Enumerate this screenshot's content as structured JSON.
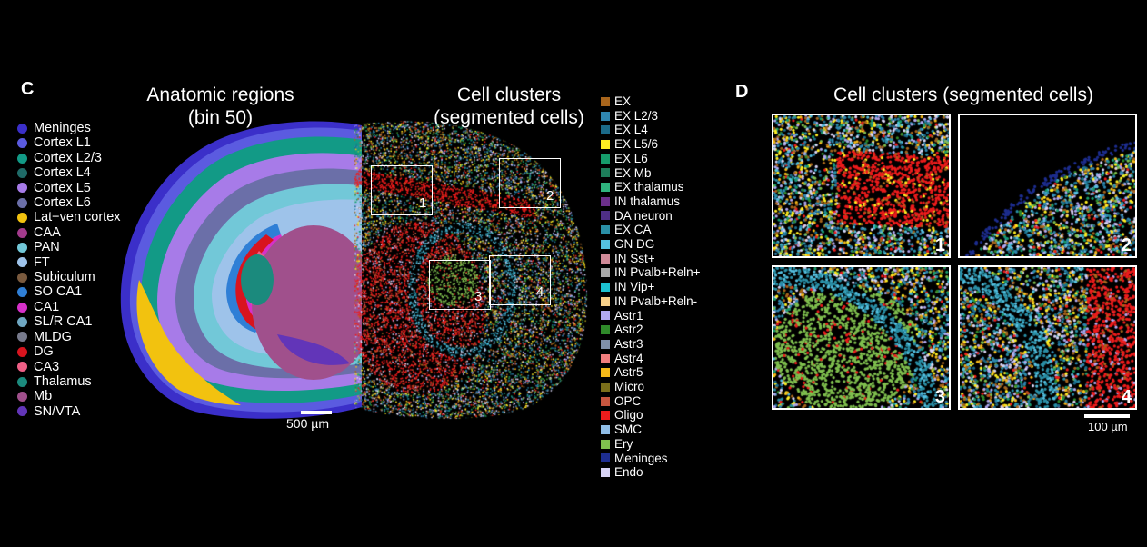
{
  "panel_c": {
    "letter": "C",
    "title_left_line1": "Anatomic regions",
    "title_left_line2": "(bin 50)",
    "title_right_line1": "Cell clusters",
    "title_right_line2": "(segmented cells)",
    "scalebar_label": "500 µm",
    "regions": [
      {
        "label": "Meninges",
        "color": "#3b2fc9"
      },
      {
        "label": "Cortex L1",
        "color": "#5b5be0"
      },
      {
        "label": "Cortex L2/3",
        "color": "#129a86"
      },
      {
        "label": "Cortex L4",
        "color": "#1f6b68"
      },
      {
        "label": "Cortex L5",
        "color": "#a77be8"
      },
      {
        "label": "Cortex L6",
        "color": "#6b6fa8"
      },
      {
        "label": "Lat−ven cortex",
        "color": "#f2c20f"
      },
      {
        "label": "CAA",
        "color": "#a33a8c"
      },
      {
        "label": "PAN",
        "color": "#72c8d8"
      },
      {
        "label": "FT",
        "color": "#9ec3ea"
      },
      {
        "label": "Subiculum",
        "color": "#7a5a3e"
      },
      {
        "label": "SO CA1",
        "color": "#2f7fd6"
      },
      {
        "label": "CA1",
        "color": "#d630c9"
      },
      {
        "label": "SL/R CA1",
        "color": "#6fa7c2"
      },
      {
        "label": "MLDG",
        "color": "#777a8c"
      },
      {
        "label": "DG",
        "color": "#d8141e"
      },
      {
        "label": "CA3",
        "color": "#ef5f86"
      },
      {
        "label": "Thalamus",
        "color": "#1b8a7d"
      },
      {
        "label": "Mb",
        "color": "#a0508c"
      },
      {
        "label": "SN/VTA",
        "color": "#6235b8"
      }
    ],
    "clusters": [
      {
        "label": "EX",
        "color": "#a8651c"
      },
      {
        "label": "EX L2/3",
        "color": "#2f86b0"
      },
      {
        "label": "EX L4",
        "color": "#1b6b8a"
      },
      {
        "label": "EX L5/6",
        "color": "#ffee22"
      },
      {
        "label": "EX L6",
        "color": "#169c6b"
      },
      {
        "label": "EX Mb",
        "color": "#1d7e5a"
      },
      {
        "label": "EX thalamus",
        "color": "#2fb37e"
      },
      {
        "label": "IN thalamus",
        "color": "#6b2f8a"
      },
      {
        "label": "DA neuron",
        "color": "#4f2f86"
      },
      {
        "label": "EX CA",
        "color": "#2a8fa6"
      },
      {
        "label": "GN DG",
        "color": "#55c0e0"
      },
      {
        "label": "IN Sst+",
        "color": "#d08a98"
      },
      {
        "label": "IN Pvalb+Reln+",
        "color": "#a9a9a9"
      },
      {
        "label": "IN Vip+",
        "color": "#1cc0d0"
      },
      {
        "label": "IN Pvalb+Reln-",
        "color": "#f7d089"
      },
      {
        "label": "Astr1",
        "color": "#b0a8f0"
      },
      {
        "label": "Astr2",
        "color": "#2f8a2a"
      },
      {
        "label": "Astr3",
        "color": "#7f8fa8"
      },
      {
        "label": "Astr4",
        "color": "#f07d7d"
      },
      {
        "label": "Astr5",
        "color": "#f5b919"
      },
      {
        "label": "Micro",
        "color": "#7a6e1a"
      },
      {
        "label": "OPC",
        "color": "#c7563f"
      },
      {
        "label": "Oligo",
        "color": "#ee1c1c"
      },
      {
        "label": "SMC",
        "color": "#8fbde6"
      },
      {
        "label": "Ery",
        "color": "#7fbf4e"
      },
      {
        "label": "Meninges",
        "color": "#1d2d8f"
      },
      {
        "label": "Endo",
        "color": "#d8d4f5"
      }
    ],
    "box_labels": [
      "1",
      "2",
      "3",
      "4"
    ]
  },
  "panel_d": {
    "letter": "D",
    "title": "Cell clusters (segmented cells)",
    "zoom_labels": [
      "1",
      "2",
      "3",
      "4"
    ],
    "scalebar_label": "100 µm"
  }
}
